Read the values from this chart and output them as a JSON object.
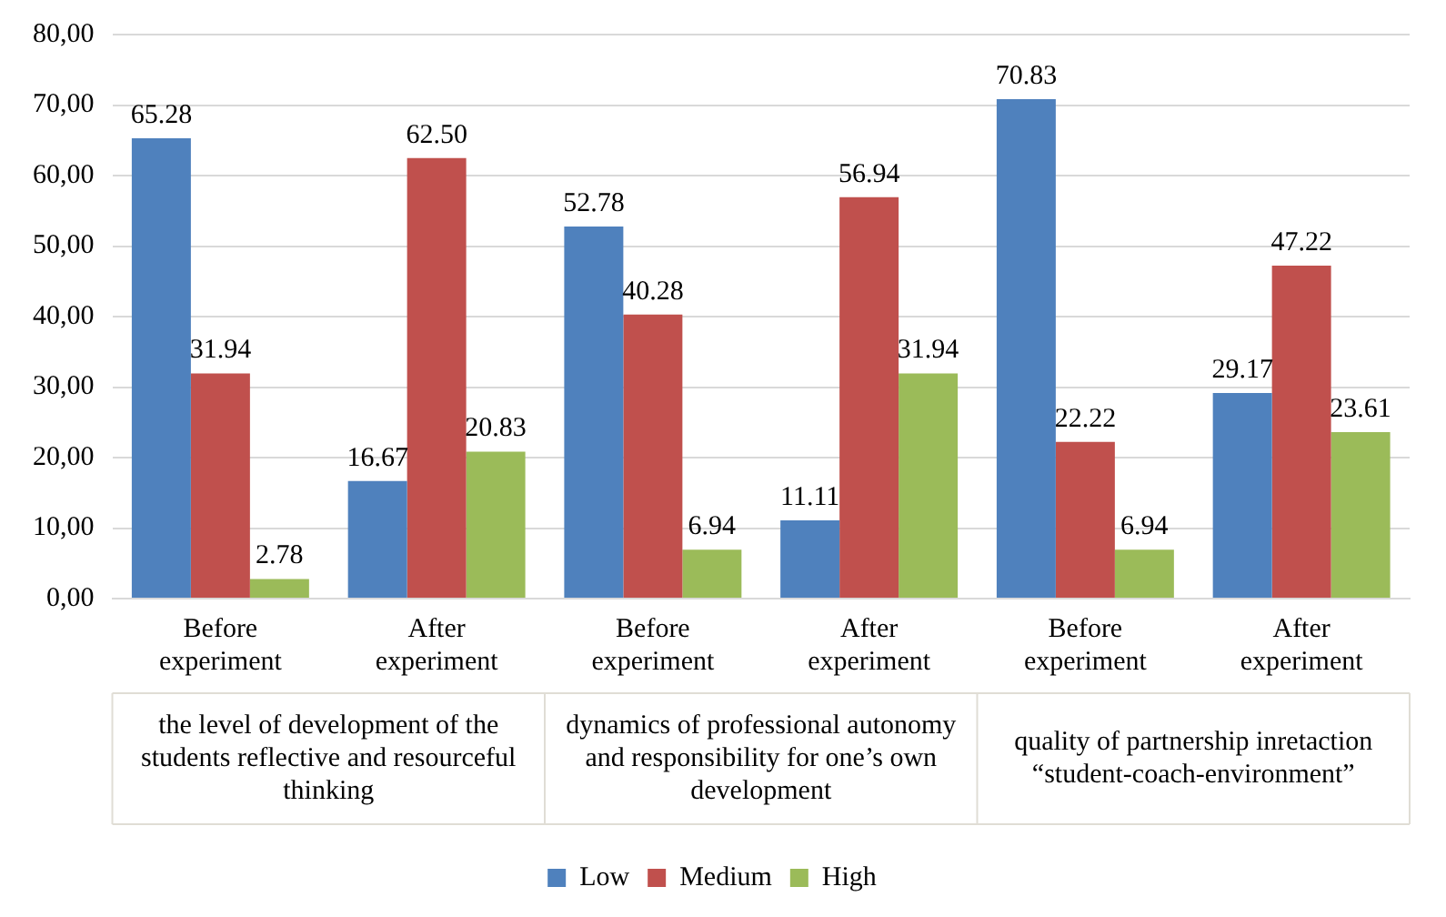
{
  "chart_data": {
    "type": "bar",
    "categories": [
      "Before experiment",
      "After experiment",
      "Before experiment",
      "After experiment",
      "Before experiment",
      "After experiment"
    ],
    "series": [
      {
        "name": "Low",
        "color": "#4f81bd",
        "values": [
          65.28,
          16.67,
          52.78,
          11.11,
          70.83,
          29.17
        ],
        "value_labels": [
          "65.28",
          "16.67",
          "52.78",
          "11.11",
          "70.83",
          "29.17"
        ]
      },
      {
        "name": "Medium",
        "color": "#c0504d",
        "values": [
          31.94,
          62.5,
          40.28,
          56.94,
          22.22,
          47.22
        ],
        "value_labels": [
          "31.94",
          "62.50",
          "40.28",
          "56.94",
          "22.22",
          "47.22"
        ]
      },
      {
        "name": "High",
        "color": "#9bbb59",
        "values": [
          2.78,
          20.83,
          6.94,
          31.94,
          6.94,
          23.61
        ],
        "value_labels": [
          "2.78",
          "20.83",
          "6.94",
          "31.94",
          "6.94",
          "23.61"
        ]
      }
    ],
    "ylim": [
      0,
      80
    ],
    "yticks": [
      {
        "value": 0,
        "label": "0,00"
      },
      {
        "value": 10,
        "label": "10,00"
      },
      {
        "value": 20,
        "label": "20,00"
      },
      {
        "value": 30,
        "label": "30,00"
      },
      {
        "value": 40,
        "label": "40,00"
      },
      {
        "value": 50,
        "label": "50,00"
      },
      {
        "value": 60,
        "label": "60,00"
      },
      {
        "value": 70,
        "label": "70,00"
      },
      {
        "value": 80,
        "label": "80,00"
      }
    ],
    "grid": "y",
    "legend": "bottom",
    "annotations": [
      "the level of development of the students reflective and resourceful thinking",
      "dynamics of professional autonomy and responsibility for one’s own development",
      "quality of partnership inretaction “student-coach-environment”"
    ]
  }
}
